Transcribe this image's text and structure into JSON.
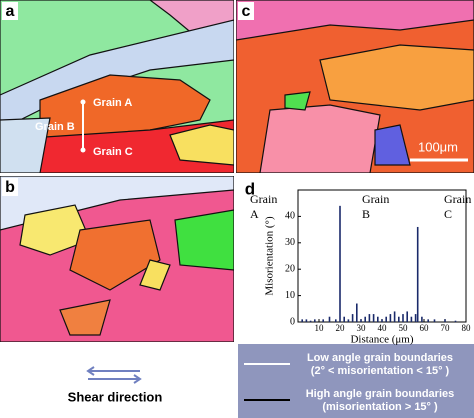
{
  "panels": [
    "a",
    "b",
    "c",
    "d"
  ],
  "map_labels": {
    "grain_a": "Grain A",
    "grain_b": "Grain B",
    "grain_c": "Grain C"
  },
  "scale_bar": "100μm",
  "shear": "Shear direction",
  "legend": [
    {
      "label": "Low angle grain boundaries",
      "detail": "(2° < misorientation < 15° )",
      "color": "#ffffff"
    },
    {
      "label": "High angle grain boundaries",
      "detail": "(misorientation > 15° )",
      "color": "#000000"
    }
  ],
  "chart_data": {
    "type": "bar",
    "x_label": "Distance (μm)",
    "y_label": "Misorientation (°)",
    "annotations": [
      [
        "Grain",
        "A"
      ],
      [
        "Grain",
        "B"
      ],
      [
        "Grain",
        "C"
      ]
    ],
    "x": [
      2,
      4,
      6,
      8,
      12,
      15,
      18,
      20,
      22,
      24,
      26,
      28,
      30,
      32,
      34,
      36,
      38,
      40,
      42,
      44,
      46,
      48,
      50,
      52,
      54,
      56,
      57,
      59,
      62,
      65,
      70,
      75
    ],
    "values": [
      1,
      1,
      0.5,
      1,
      1,
      2,
      1,
      44,
      2,
      1,
      3,
      7,
      1,
      2,
      3,
      3,
      2,
      1,
      2,
      3,
      4,
      2,
      3,
      4,
      2,
      3,
      36,
      2,
      1,
      1,
      1,
      0.5
    ],
    "color": "#1a2a6a",
    "xlim": [
      0,
      80
    ],
    "xticks": [
      10,
      20,
      30,
      40,
      50,
      60,
      70,
      80
    ],
    "ylim": [
      0,
      50
    ],
    "yticks": [
      0,
      10,
      20,
      30,
      40
    ]
  }
}
